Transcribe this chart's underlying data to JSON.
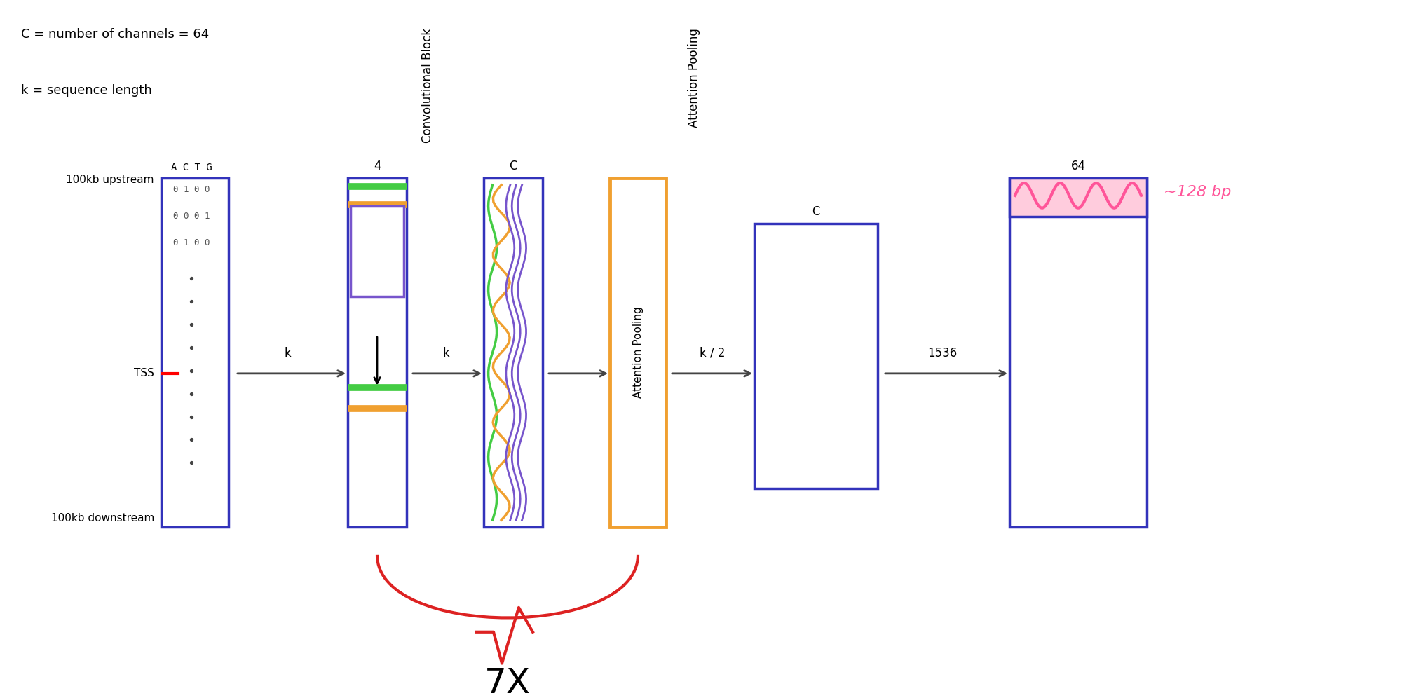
{
  "legend_text1": "C = number of channels = 64",
  "legend_text2": "k = sequence length",
  "upstream_label": "100kb upstream",
  "downstream_label": "100kb downstream",
  "tss_label": "TSS",
  "actg_header": "A C T G",
  "seq_rows": [
    "0 1 0 0",
    "0 0 0 1",
    "0 1 0 0"
  ],
  "conv_block_label": "Convolutional Block",
  "attn_pooling_label": "Attention Pooling",
  "attn_pooling_box_label": "Attention Pooling",
  "label_4": "4",
  "label_C1": "C",
  "label_C2": "C",
  "label_64": "64",
  "label_7x": "7X",
  "box_color": "#3333bb",
  "attn_color": "#f0a030",
  "arrow_color": "#444444",
  "wiggle_color": "#ff5599",
  "wiggle_label": "~128 bp",
  "background": "#ffffff",
  "curve_color": "#dd2222",
  "green_color": "#44cc44",
  "orange_color": "#f0a030",
  "purple_color": "#7755cc",
  "conv1_line_colors": [
    "#44cc44",
    "#f0a030",
    "#7755cc",
    "#44cc44",
    "#f0a030",
    "#7755cc"
  ],
  "conv2_line_colors": [
    "#44cc44",
    "#f0a030",
    "#7755cc",
    "#7755cc",
    "#7755cc"
  ]
}
